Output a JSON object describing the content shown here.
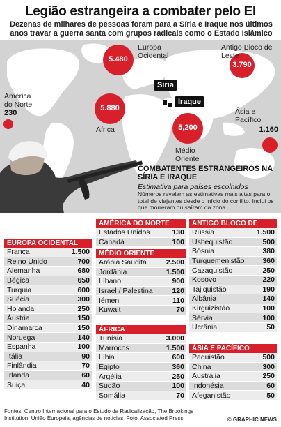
{
  "header": {
    "title": "Legião estrangeira a combater pelo EI",
    "subtitle": "Dezenas de milhares de pessoas foram para a Síria e Iraque nos últimos anos travar a guerra santa com grupos radicais como o Estado Islâmico"
  },
  "map": {
    "regions": [
      {
        "label": "Europa Ocidental",
        "value": "5.480"
      },
      {
        "label": "Antigo Bloco de Leste",
        "value": "3.790"
      },
      {
        "label": "América do Norte",
        "value": "230"
      },
      {
        "label": "África",
        "value": "5.880"
      },
      {
        "label": "Médio Oriente",
        "value": "5,200"
      },
      {
        "label": "Ásia e Pacífico",
        "value": "1.160"
      }
    ],
    "tags": {
      "syria": "Síria",
      "iraq": "Iraque"
    },
    "colors": {
      "bubble": "#d8202a",
      "land": "#ffffff",
      "sea": "#d3d3d3"
    }
  },
  "info": {
    "title": "COMBATENTES ESTRANGEIROS NA SÍRIA E IRAQUE",
    "subtitle": "Estimativa para países escolhidos",
    "note": "Números revelam as estimativas mais altas para o total de viajantes desde o início do conflito. Inclui os que morreram ou saíram da zona"
  },
  "table": {
    "europa": {
      "title": "EUROPA OCIDENTAL",
      "rows": [
        {
          "c": "França",
          "v": "1.500"
        },
        {
          "c": "Reino Unido",
          "v": "700"
        },
        {
          "c": "Alemanha",
          "v": "680"
        },
        {
          "c": "Bégica",
          "v": "650"
        },
        {
          "c": "Turquia",
          "v": "600"
        },
        {
          "c": "Suécia",
          "v": "300"
        },
        {
          "c": "Holanda",
          "v": "250"
        },
        {
          "c": "Áustria",
          "v": "150"
        },
        {
          "c": "Dinamarca",
          "v": "150"
        },
        {
          "c": "Noruega",
          "v": "140"
        },
        {
          "c": "Espanha",
          "v": "100"
        },
        {
          "c": "Itália",
          "v": "90"
        },
        {
          "c": "Finlândia",
          "v": "70"
        },
        {
          "c": "Irlanda",
          "v": "60"
        },
        {
          "c": "Suiça",
          "v": "40"
        }
      ]
    },
    "america": {
      "title": "AMÉRICA DO NORTE",
      "rows": [
        {
          "c": "Estados Unidos",
          "v": "130"
        },
        {
          "c": "Canadá",
          "v": "100"
        }
      ]
    },
    "medio": {
      "title": "MÉDIO ORIENTE",
      "rows": [
        {
          "c": "Arábia Saudita",
          "v": "2.500"
        },
        {
          "c": "Jordânia",
          "v": "1.500"
        },
        {
          "c": "Líbano",
          "v": "900"
        },
        {
          "c": "Israel / Palestina",
          "v": "120"
        },
        {
          "c": "Iémen",
          "v": "110"
        },
        {
          "c": "Kuwait",
          "v": "70"
        }
      ]
    },
    "africa": {
      "title": "ÁFRICA",
      "rows": [
        {
          "c": "Tunísia",
          "v": "3.000"
        },
        {
          "c": "Marrocos",
          "v": "1.500"
        },
        {
          "c": "Líbia",
          "v": "600"
        },
        {
          "c": "Egipto",
          "v": "360"
        },
        {
          "c": "Argélia",
          "v": "250"
        },
        {
          "c": "Sudão",
          "v": "100"
        },
        {
          "c": "Somália",
          "v": "70"
        }
      ]
    },
    "leste": {
      "title": "ANTIGO BLOCO DE LESTE",
      "rows": [
        {
          "c": "Rússia",
          "v": "1.500"
        },
        {
          "c": "Usbequistão",
          "v": "500"
        },
        {
          "c": "Bósnia",
          "v": "380"
        },
        {
          "c": "Turquemenistão",
          "v": "360"
        },
        {
          "c": "Cazaquistão",
          "v": "250"
        },
        {
          "c": "Kosovo",
          "v": "220"
        },
        {
          "c": "Tajiquistão",
          "v": "190"
        },
        {
          "c": "Albânia",
          "v": "140"
        },
        {
          "c": "Kirguizistão",
          "v": "100"
        },
        {
          "c": "Sérvia",
          "v": "100"
        },
        {
          "c": "Ucrânia",
          "v": "50"
        }
      ]
    },
    "asia": {
      "title": "ÁSIA E PACÍFICO",
      "rows": [
        {
          "c": "Paquistão",
          "v": "500"
        },
        {
          "c": "China",
          "v": "300"
        },
        {
          "c": "Austrália",
          "v": "250"
        },
        {
          "c": "Indonésia",
          "v": "60"
        },
        {
          "c": "Afeganistão",
          "v": "50"
        }
      ]
    }
  },
  "footer": {
    "sources": "Fontes: Centro Internacional para o Estudo da Radicalização, The Brookings Institution, União Europeia, agências de notícias",
    "photo": "Foto: Associated Press",
    "credit": "© GRAPHIC NEWS"
  }
}
